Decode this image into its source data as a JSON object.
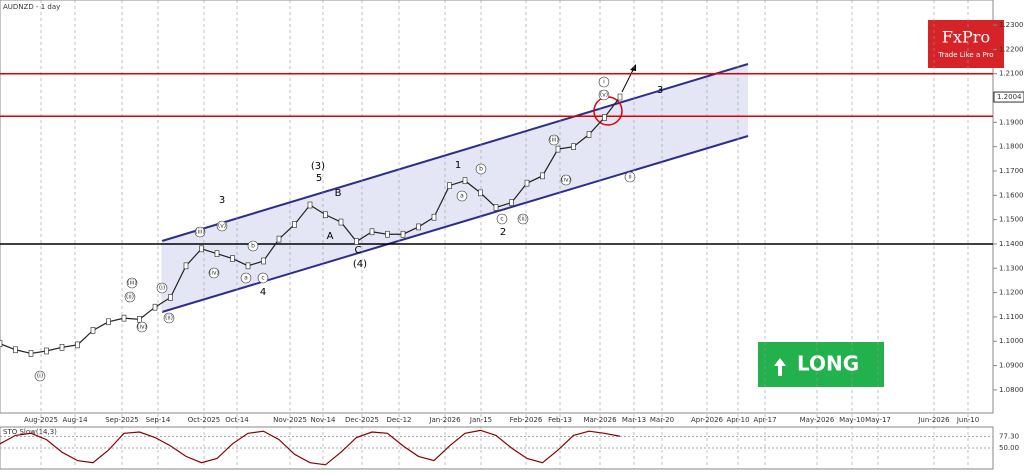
{
  "chart_data": [
    {
      "type": "line",
      "title": "AUDNZD - 1 day",
      "values": [
        1.099,
        1.0965,
        1.095,
        1.096,
        1.0975,
        1.0985,
        1.1045,
        1.108,
        1.1095,
        1.109,
        1.114,
        1.118,
        1.131,
        1.138,
        1.136,
        1.134,
        1.131,
        1.133,
        1.142,
        1.148,
        1.156,
        1.152,
        1.149,
        1.141,
        1.145,
        1.144,
        1.144,
        1.147,
        1.151,
        1.164,
        1.166,
        1.161,
        1.155,
        1.157,
        1.165,
        1.168,
        1.179,
        1.18,
        1.185,
        1.192,
        1.2004
      ],
      "color": "#222222",
      "ylim": [
        1.0705,
        1.2403
      ],
      "yticks": [
        {
          "value": 1.08,
          "label": "1.0800"
        },
        {
          "value": 1.09,
          "label": "1.0900"
        },
        {
          "value": 1.1,
          "label": "1.1000"
        },
        {
          "value": 1.11,
          "label": "1.1100"
        },
        {
          "value": 1.12,
          "label": "1.1200"
        },
        {
          "value": 1.13,
          "label": "1.1300"
        },
        {
          "value": 1.14,
          "label": "1.1400"
        },
        {
          "value": 1.15,
          "label": "1.1500"
        },
        {
          "value": 1.16,
          "label": "1.1600"
        },
        {
          "value": 1.17,
          "label": "1.1700"
        },
        {
          "value": 1.18,
          "label": "1.1800"
        },
        {
          "value": 1.19,
          "label": "1.1900"
        },
        {
          "value": 1.2,
          "label": "1.2000"
        },
        {
          "value": 1.21,
          "label": "1.2100"
        },
        {
          "value": 1.22,
          "label": "1.2200"
        },
        {
          "value": 1.23,
          "label": "1.2300"
        }
      ],
      "last_price": {
        "value": 1.2004,
        "label": "1.2004"
      },
      "levels": [
        {
          "value": 1.21,
          "color": "#e00000"
        },
        {
          "value": 1.1925,
          "color": "#e00000"
        },
        {
          "value": 1.14,
          "color": "#000000"
        }
      ],
      "date_labels": [
        "Aug-2025",
        "Aug-14",
        "Sep-2025",
        "Sep-14",
        "Oct-2025",
        "Oct-14",
        "Nov-2025",
        "Nov-14",
        "Dec-2025",
        "Dec-12",
        "Jan-2026",
        "Jan-15",
        "Feb-2026",
        "Feb-13",
        "Mar-2026",
        "Mar-13",
        "Mar-20",
        "Apr-2026",
        "Apr-10",
        "Apr-17",
        "May-2026",
        "May-10",
        "May-17",
        "Jun-2026",
        "Jun-10"
      ],
      "annotations": [
        "3",
        "(3)",
        "5",
        "B",
        "A",
        "C",
        "(4)",
        "4",
        "1",
        "2",
        "3",
        "(iii)",
        "(v)",
        "(iv)",
        "(ii)",
        "(i)",
        "(iv)",
        "(iii)",
        "(ii)",
        "(i)",
        "(v)",
        "(iv)",
        "(ii)",
        "(iii)",
        "a",
        "b",
        "c",
        "a",
        "b",
        "c",
        "i",
        "ii"
      ],
      "brand": "FxPro",
      "slogan": "Trade Like a Pro",
      "signal": "LONG"
    },
    {
      "type": "line",
      "title": "STO Slow(14,3)",
      "values": [
        60,
        80,
        85,
        70,
        40,
        20,
        15,
        45,
        85,
        88,
        75,
        55,
        30,
        15,
        25,
        60,
        85,
        90,
        70,
        35,
        15,
        10,
        40,
        75,
        88,
        85,
        55,
        30,
        20,
        55,
        85,
        92,
        80,
        50,
        25,
        15,
        45,
        80,
        90,
        85,
        78
      ],
      "color": "#8b0000",
      "ylim": [
        0,
        100
      ],
      "yticks": [
        {
          "value": 77.3,
          "label": "77.30"
        },
        {
          "value": 50,
          "label": "50.00"
        }
      ]
    }
  ]
}
